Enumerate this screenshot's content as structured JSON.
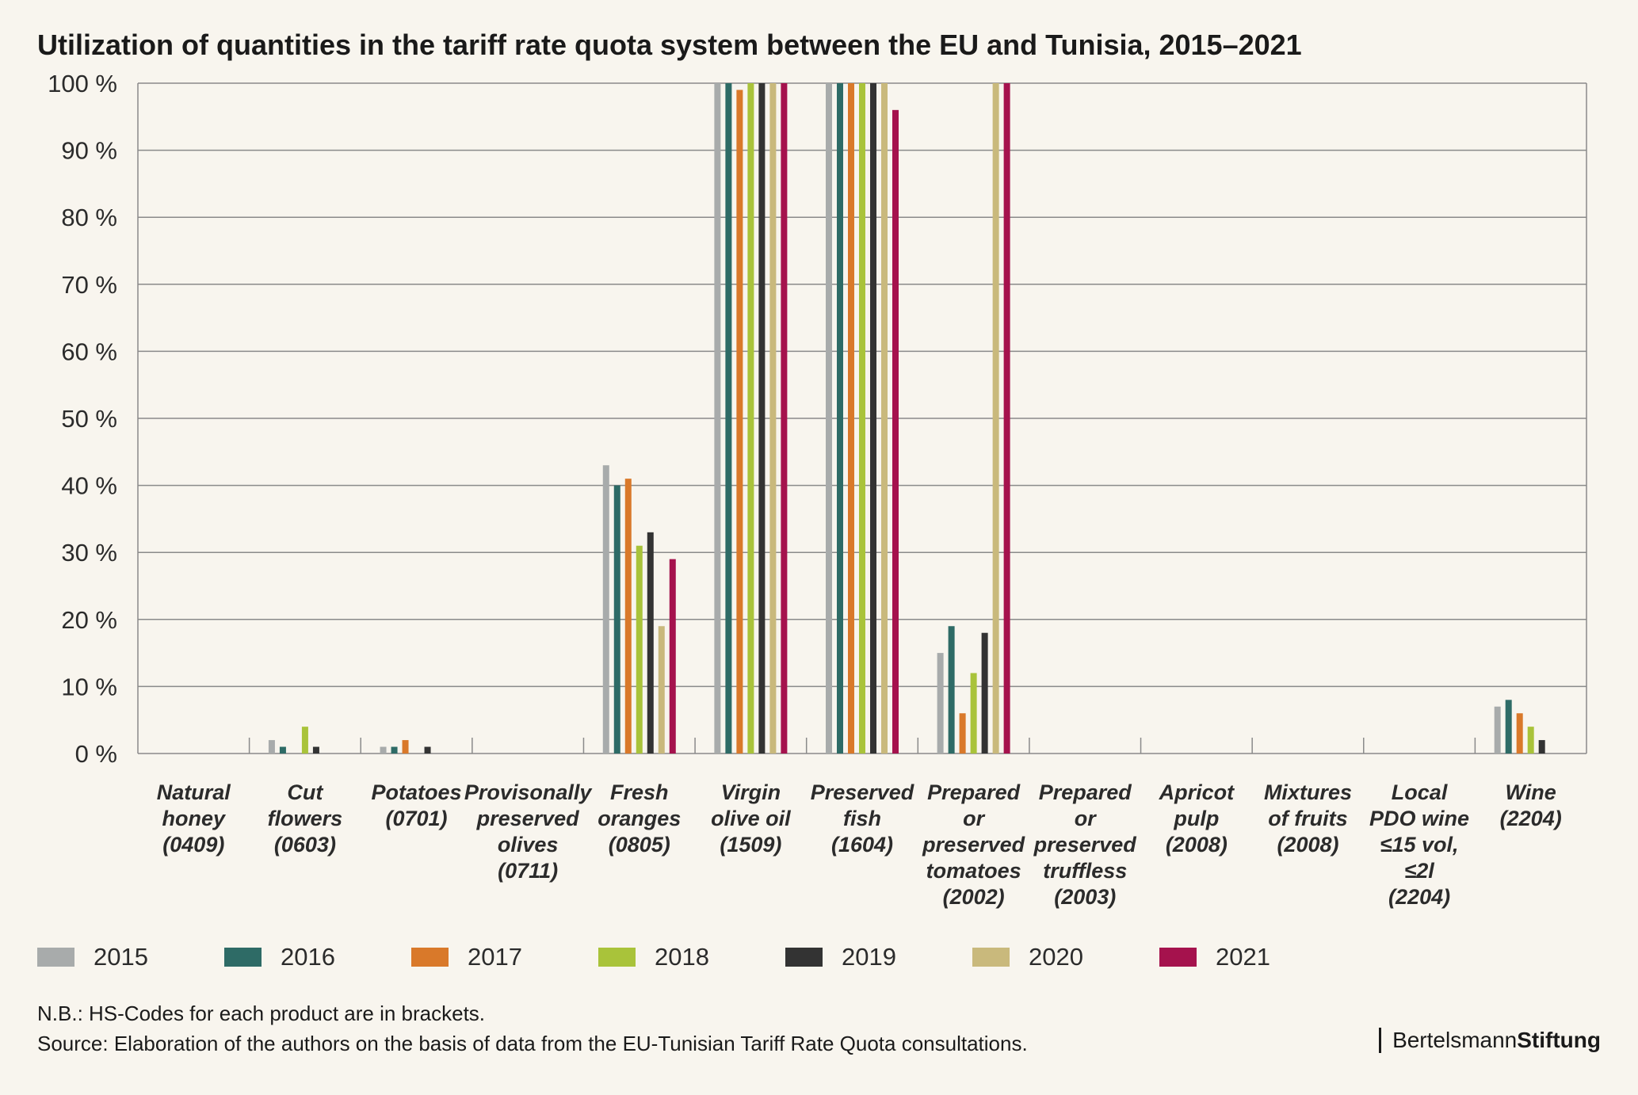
{
  "title": "Utilization of quantities in the tariff rate quota system between the EU and Tunisia, 2015–2021",
  "note": "N.B.: HS-Codes for each product are in brackets.",
  "source": "Source: Elaboration of the authors on the basis of data from the EU-Tunisian Tariff Rate Quota consultations.",
  "brand": {
    "part1": "Bertelsmann",
    "part2": "Stiftung"
  },
  "colors": {
    "2015": "#a8abab",
    "2016": "#2e6b66",
    "2017": "#d9792a",
    "2018": "#a9c33a",
    "2019": "#333333",
    "2020": "#c9b97c",
    "2021": "#a5124d",
    "grid": "#8a8a8a",
    "background": "#f8f5ee"
  },
  "chart_data": {
    "type": "bar",
    "title": "Utilization of quantities in the tariff rate quota system between the EU and Tunisia, 2015–2021",
    "ylim": [
      0,
      100
    ],
    "yticks": [
      "0 %",
      "10 %",
      "20 %",
      "30 %",
      "40 %",
      "50 %",
      "60 %",
      "70 %",
      "80 %",
      "90 %",
      "100 %"
    ],
    "grid": true,
    "legend_position": "bottom",
    "categories": [
      [
        "Natural",
        "honey",
        "(0409)"
      ],
      [
        "Cut",
        "flowers",
        "(0603)"
      ],
      [
        "Potatoes",
        "(0701)"
      ],
      [
        "Provisonally",
        "preserved",
        "olives",
        "(0711)"
      ],
      [
        "Fresh",
        "oranges",
        "(0805)"
      ],
      [
        "Virgin",
        "olive oil",
        "(1509)"
      ],
      [
        "Preserved",
        "fish",
        "(1604)"
      ],
      [
        "Prepared",
        "or",
        "preserved",
        "tomatoes",
        "(2002)"
      ],
      [
        "Prepared",
        "or",
        "preserved",
        "truffless",
        "(2003)"
      ],
      [
        "Apricot",
        "pulp",
        "(2008)"
      ],
      [
        "Mixtures",
        "of fruits",
        "(2008)"
      ],
      [
        "Local",
        "PDO wine",
        "≤15 vol,",
        "≤2l",
        "(2204)"
      ],
      [
        "Wine",
        "(2204)"
      ]
    ],
    "series": [
      {
        "name": "2015",
        "values": [
          0,
          2,
          1,
          0,
          43,
          100,
          100,
          15,
          0,
          0,
          0,
          0,
          7
        ]
      },
      {
        "name": "2016",
        "values": [
          0,
          1,
          1,
          0,
          40,
          100,
          100,
          19,
          0,
          0,
          0,
          0,
          8
        ]
      },
      {
        "name": "2017",
        "values": [
          0,
          0,
          2,
          0,
          41,
          99,
          100,
          6,
          0,
          0,
          0,
          0,
          6
        ]
      },
      {
        "name": "2018",
        "values": [
          0,
          4,
          0,
          0,
          31,
          100,
          100,
          12,
          0,
          0,
          0,
          0,
          4
        ]
      },
      {
        "name": "2019",
        "values": [
          0,
          1,
          1,
          0,
          33,
          100,
          100,
          18,
          0,
          0,
          0,
          0,
          2
        ]
      },
      {
        "name": "2020",
        "values": [
          0,
          0,
          0,
          0,
          19,
          100,
          100,
          100,
          0,
          0,
          0,
          0,
          0
        ]
      },
      {
        "name": "2021",
        "values": [
          0,
          0,
          0,
          0,
          29,
          100,
          96,
          100,
          0,
          0,
          0,
          0,
          0
        ]
      }
    ]
  }
}
